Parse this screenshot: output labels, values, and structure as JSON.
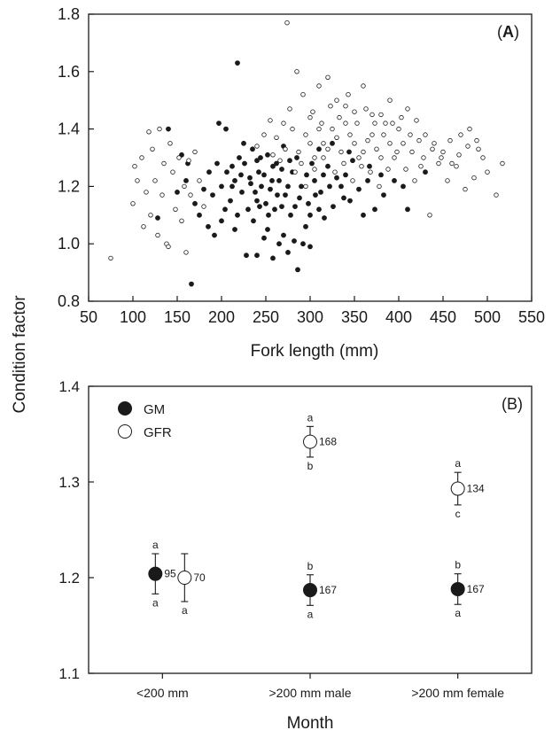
{
  "chart_data": [
    {
      "type": "scatter",
      "panel_label": "A",
      "xlabel": "Fork length (mm)",
      "ylabel": "Condition factor",
      "xlim": [
        50,
        550
      ],
      "ylim": [
        0.8,
        1.8
      ],
      "xticks": [
        "50",
        "100",
        "150",
        "200",
        "250",
        "300",
        "350",
        "400",
        "450",
        "500",
        "550"
      ],
      "yticks": [
        "0.8",
        "1.0",
        "1.2",
        "1.4",
        "1.6",
        "1.8"
      ],
      "grid": false,
      "series": [
        {
          "marker": "filled",
          "points": [
            [
              218,
              1.63
            ],
            [
              166,
              0.86
            ],
            [
              286,
              0.91
            ],
            [
              140,
              1.4
            ],
            [
              197,
              1.42
            ],
            [
              205,
              1.4
            ],
            [
              228,
              0.96
            ],
            [
              240,
              0.96
            ],
            [
              258,
              0.95
            ],
            [
              410,
              1.12
            ],
            [
              373,
              1.12
            ],
            [
              430,
              1.25
            ],
            [
              383,
              1.17
            ],
            [
              365,
              1.22
            ],
            [
              344,
              1.32
            ],
            [
              325,
              1.35
            ],
            [
              310,
              1.33
            ],
            [
              185,
              1.06
            ],
            [
              175,
              1.1
            ],
            [
              192,
              1.03
            ],
            [
              206,
              1.25
            ],
            [
              215,
              1.22
            ],
            [
              223,
              1.18
            ],
            [
              233,
              1.21
            ],
            [
              240,
              1.15
            ],
            [
              248,
              1.24
            ],
            [
              255,
              1.19
            ],
            [
              260,
              1.12
            ],
            [
              265,
              1.22
            ],
            [
              272,
              1.17
            ],
            [
              280,
              1.25
            ],
            [
              290,
              1.2
            ],
            [
              298,
              1.14
            ],
            [
              305,
              1.22
            ],
            [
              312,
              1.18
            ],
            [
              320,
              1.27
            ],
            [
              330,
              1.23
            ],
            [
              338,
              1.16
            ],
            [
              226,
              1.28
            ],
            [
              236,
              1.08
            ],
            [
              244,
              1.3
            ],
            [
              252,
              1.05
            ],
            [
              262,
              1.28
            ],
            [
              270,
              1.03
            ],
            [
              278,
              1.1
            ],
            [
              285,
              1.3
            ],
            [
              295,
              1.06
            ],
            [
              302,
              1.28
            ],
            [
              210,
              1.15
            ],
            [
              218,
              1.1
            ],
            [
              200,
              1.2
            ],
            [
              195,
              1.28
            ],
            [
              230,
              1.12
            ],
            [
              250,
              1.14
            ],
            [
              268,
              1.26
            ],
            [
              288,
              1.16
            ],
            [
              300,
              1.1
            ],
            [
              315,
              1.24
            ],
            [
              335,
              1.2
            ],
            [
              345,
              1.15
            ],
            [
              355,
              1.19
            ],
            [
              360,
              1.1
            ],
            [
              245,
              1.2
            ],
            [
              257,
              1.22
            ],
            [
              263,
              1.17
            ],
            [
              275,
              1.2
            ],
            [
              242,
              1.25
            ],
            [
              238,
              1.18
            ],
            [
              232,
              1.23
            ],
            [
              222,
              1.24
            ],
            [
              212,
              1.27
            ],
            [
              204,
              1.12
            ],
            [
              190,
              1.17
            ],
            [
              180,
              1.19
            ],
            [
              170,
              1.14
            ],
            [
              160,
              1.22
            ],
            [
              150,
              1.18
            ],
            [
              128,
              1.09
            ],
            [
              155,
              1.31
            ],
            [
              162,
              1.28
            ],
            [
              225,
              1.35
            ],
            [
              235,
              1.33
            ],
            [
              270,
              1.34
            ],
            [
              282,
              1.01
            ],
            [
              292,
              1.0
            ],
            [
              265,
              1.0
            ],
            [
              248,
              1.02
            ],
            [
              275,
              0.97
            ],
            [
              300,
              0.99
            ],
            [
              215,
              1.05
            ],
            [
              220,
              1.3
            ],
            [
              253,
              1.1
            ],
            [
              283,
              1.13
            ],
            [
              310,
              1.12
            ],
            [
              322,
              1.2
            ],
            [
              340,
              1.24
            ],
            [
              348,
              1.29
            ],
            [
              367,
              1.27
            ],
            [
              380,
              1.24
            ],
            [
              395,
              1.22
            ],
            [
              405,
              1.2
            ],
            [
              243,
              1.13
            ],
            [
              258,
              1.27
            ],
            [
              268,
              1.13
            ],
            [
              277,
              1.29
            ],
            [
              296,
              1.24
            ],
            [
              306,
              1.17
            ],
            [
              316,
              1.09
            ],
            [
              326,
              1.13
            ],
            [
              252,
              1.31
            ],
            [
              240,
              1.29
            ],
            [
              212,
              1.2
            ],
            [
              200,
              1.08
            ],
            [
              186,
              1.25
            ]
          ]
        },
        {
          "marker": "open",
          "points": [
            [
              274,
              1.77
            ],
            [
              75,
              0.95
            ],
            [
              100,
              1.14
            ],
            [
              102,
              1.27
            ],
            [
              105,
              1.22
            ],
            [
              110,
              1.3
            ],
            [
              115,
              1.18
            ],
            [
              118,
              1.39
            ],
            [
              122,
              1.33
            ],
            [
              125,
              1.22
            ],
            [
              128,
              1.03
            ],
            [
              130,
              1.4
            ],
            [
              135,
              1.28
            ],
            [
              138,
              1.0
            ],
            [
              142,
              1.35
            ],
            [
              145,
              1.25
            ],
            [
              148,
              1.12
            ],
            [
              152,
              1.3
            ],
            [
              158,
              1.2
            ],
            [
              160,
              0.97
            ],
            [
              165,
              1.17
            ],
            [
              170,
              1.32
            ],
            [
              175,
              1.22
            ],
            [
              180,
              1.13
            ],
            [
              112,
              1.06
            ],
            [
              120,
              1.1
            ],
            [
              133,
              1.17
            ],
            [
              140,
              0.99
            ],
            [
              155,
              1.08
            ],
            [
              163,
              1.29
            ],
            [
              277,
              1.47
            ],
            [
              285,
              1.6
            ],
            [
              292,
              1.52
            ],
            [
              300,
              1.44
            ],
            [
              310,
              1.55
            ],
            [
              320,
              1.58
            ],
            [
              330,
              1.5
            ],
            [
              340,
              1.48
            ],
            [
              350,
              1.46
            ],
            [
              360,
              1.55
            ],
            [
              370,
              1.38
            ],
            [
              380,
              1.45
            ],
            [
              390,
              1.5
            ],
            [
              400,
              1.4
            ],
            [
              410,
              1.47
            ],
            [
              420,
              1.43
            ],
            [
              430,
              1.38
            ],
            [
              440,
              1.35
            ],
            [
              450,
              1.32
            ],
            [
              460,
              1.28
            ],
            [
              470,
              1.38
            ],
            [
              480,
              1.4
            ],
            [
              490,
              1.33
            ],
            [
              500,
              1.25
            ],
            [
              510,
              1.17
            ],
            [
              517,
              1.28
            ],
            [
              495,
              1.3
            ],
            [
              485,
              1.23
            ],
            [
              475,
              1.19
            ],
            [
              465,
              1.27
            ],
            [
              455,
              1.22
            ],
            [
              445,
              1.28
            ],
            [
              435,
              1.1
            ],
            [
              425,
              1.27
            ],
            [
              415,
              1.32
            ],
            [
              405,
              1.35
            ],
            [
              395,
              1.3
            ],
            [
              385,
              1.42
            ],
            [
              375,
              1.33
            ],
            [
              365,
              1.36
            ],
            [
              355,
              1.3
            ],
            [
              345,
              1.38
            ],
            [
              335,
              1.32
            ],
            [
              325,
              1.4
            ],
            [
              315,
              1.35
            ],
            [
              305,
              1.3
            ],
            [
              295,
              1.38
            ],
            [
              287,
              1.32
            ],
            [
              280,
              1.4
            ],
            [
              270,
              1.42
            ],
            [
              262,
              1.37
            ],
            [
              255,
              1.43
            ],
            [
              248,
              1.38
            ],
            [
              240,
              1.34
            ],
            [
              283,
              1.25
            ],
            [
              295,
              1.2
            ],
            [
              305,
              1.26
            ],
            [
              315,
              1.3
            ],
            [
              328,
              1.25
            ],
            [
              338,
              1.28
            ],
            [
              348,
              1.22
            ],
            [
              358,
              1.27
            ],
            [
              368,
              1.25
            ],
            [
              378,
              1.2
            ],
            [
              388,
              1.26
            ],
            [
              398,
              1.32
            ],
            [
              408,
              1.26
            ],
            [
              418,
              1.22
            ],
            [
              428,
              1.3
            ],
            [
              438,
              1.33
            ],
            [
              448,
              1.3
            ],
            [
              458,
              1.36
            ],
            [
              468,
              1.31
            ],
            [
              478,
              1.34
            ],
            [
              488,
              1.36
            ],
            [
              303,
              1.46
            ],
            [
              313,
              1.42
            ],
            [
              323,
              1.48
            ],
            [
              333,
              1.44
            ],
            [
              343,
              1.52
            ],
            [
              353,
              1.42
            ],
            [
              363,
              1.47
            ],
            [
              373,
              1.42
            ],
            [
              383,
              1.38
            ],
            [
              393,
              1.42
            ],
            [
              403,
              1.44
            ],
            [
              413,
              1.38
            ],
            [
              423,
              1.36
            ],
            [
              272,
              1.33
            ],
            [
              266,
              1.29
            ],
            [
              258,
              1.31
            ],
            [
              290,
              1.28
            ],
            [
              300,
              1.35
            ],
            [
              310,
              1.4
            ],
            [
              320,
              1.33
            ],
            [
              330,
              1.37
            ],
            [
              340,
              1.42
            ],
            [
              350,
              1.35
            ],
            [
              360,
              1.32
            ],
            [
              370,
              1.45
            ],
            [
              380,
              1.3
            ],
            [
              390,
              1.35
            ]
          ]
        }
      ]
    },
    {
      "type": "scatter",
      "panel_label": "(B)",
      "xlabel": "Month",
      "ylabel": "Condition factor",
      "ylim": [
        1.1,
        1.4
      ],
      "yticks": [
        "1.1",
        "1.2",
        "1.3",
        "1.4"
      ],
      "categories": [
        "<200 mm",
        ">200 mm male",
        ">200 mm female"
      ],
      "grid": false,
      "legend_position": "top-left",
      "series": [
        {
          "name": "GM",
          "marker": "filled",
          "values": [
            1.204,
            1.187,
            1.188
          ],
          "errors": [
            0.021,
            0.016,
            0.016
          ],
          "n": [
            "95",
            "167",
            "167"
          ],
          "letters_above": [
            "a",
            "b",
            "b"
          ],
          "letters_below": [
            "a",
            "a",
            "a"
          ]
        },
        {
          "name": "GFR",
          "marker": "open",
          "values": [
            1.2,
            1.342,
            1.293
          ],
          "errors": [
            0.025,
            0.016,
            0.017
          ],
          "n": [
            "70",
            "168",
            "134"
          ],
          "letters_above": [
            "",
            "a",
            "a"
          ],
          "letters_below": [
            "a",
            "b",
            "c"
          ]
        }
      ]
    }
  ]
}
